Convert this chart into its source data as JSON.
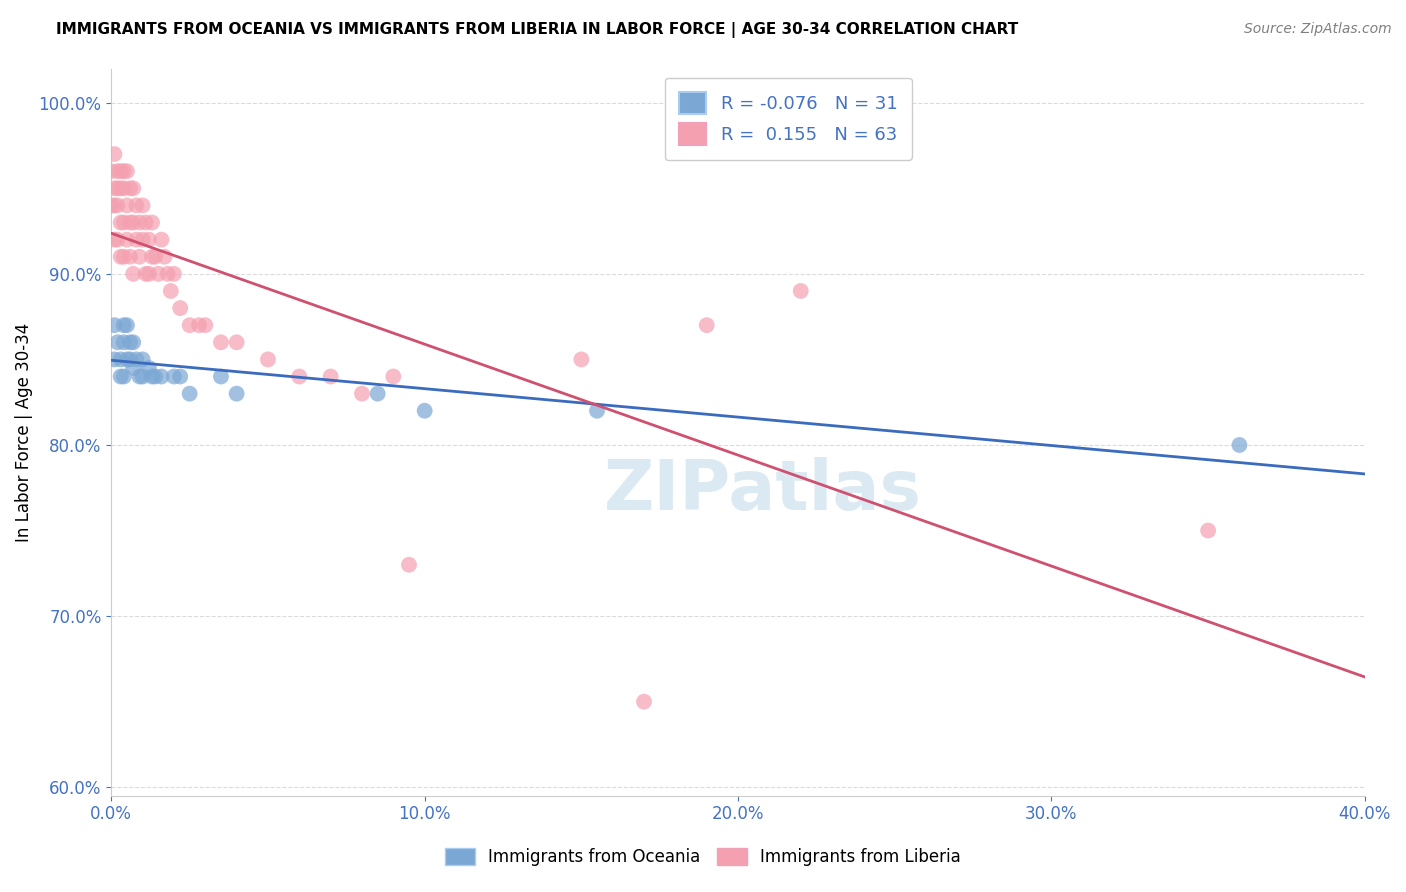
{
  "title": "IMMIGRANTS FROM OCEANIA VS IMMIGRANTS FROM LIBERIA IN LABOR FORCE | AGE 30-34 CORRELATION CHART",
  "source": "Source: ZipAtlas.com",
  "ylabel": "In Labor Force | Age 30-34",
  "xlabel": "",
  "legend1_label": "Immigrants from Oceania",
  "legend2_label": "Immigrants from Liberia",
  "R_oceania": -0.076,
  "N_oceania": 31,
  "R_liberia": 0.155,
  "N_liberia": 63,
  "xlim": [
    0.0,
    0.4
  ],
  "ylim": [
    0.595,
    1.02
  ],
  "yticks": [
    0.6,
    0.7,
    0.8,
    0.9,
    1.0
  ],
  "ytick_labels": [
    "60.0%",
    "70.0%",
    "80.0%",
    "90.0%",
    "100.0%"
  ],
  "xticks": [
    0.0,
    0.1,
    0.2,
    0.3,
    0.4
  ],
  "xtick_labels": [
    "0.0%",
    "10.0%",
    "20.0%",
    "30.0%",
    "40.0%"
  ],
  "oceania_color": "#7ba7d4",
  "liberia_color": "#f4a0b0",
  "line_oceania_color": "#3a6bbf",
  "line_liberia_color": "#d05070",
  "background_color": "#ffffff",
  "watermark": "ZIPatlas",
  "oceania_x": [
    0.001,
    0.001,
    0.002,
    0.003,
    0.003,
    0.004,
    0.004,
    0.004,
    0.005,
    0.005,
    0.006,
    0.006,
    0.007,
    0.007,
    0.008,
    0.009,
    0.01,
    0.01,
    0.012,
    0.013,
    0.014,
    0.016,
    0.02,
    0.022,
    0.025,
    0.035,
    0.04,
    0.085,
    0.1,
    0.155,
    0.36
  ],
  "oceania_y": [
    0.87,
    0.85,
    0.86,
    0.85,
    0.84,
    0.87,
    0.86,
    0.84,
    0.87,
    0.85,
    0.86,
    0.85,
    0.86,
    0.845,
    0.85,
    0.84,
    0.85,
    0.84,
    0.845,
    0.84,
    0.84,
    0.84,
    0.84,
    0.84,
    0.83,
    0.84,
    0.83,
    0.83,
    0.82,
    0.82,
    0.8
  ],
  "liberia_x": [
    0.0,
    0.0,
    0.001,
    0.001,
    0.001,
    0.001,
    0.002,
    0.002,
    0.002,
    0.002,
    0.003,
    0.003,
    0.003,
    0.003,
    0.004,
    0.004,
    0.004,
    0.004,
    0.005,
    0.005,
    0.005,
    0.006,
    0.006,
    0.006,
    0.007,
    0.007,
    0.007,
    0.008,
    0.008,
    0.009,
    0.009,
    0.01,
    0.01,
    0.011,
    0.011,
    0.012,
    0.012,
    0.013,
    0.013,
    0.014,
    0.015,
    0.016,
    0.017,
    0.018,
    0.019,
    0.02,
    0.022,
    0.025,
    0.028,
    0.03,
    0.035,
    0.04,
    0.05,
    0.06,
    0.07,
    0.08,
    0.09,
    0.095,
    0.15,
    0.19,
    0.22,
    0.35,
    0.17
  ],
  "liberia_y": [
    0.96,
    0.94,
    0.97,
    0.95,
    0.94,
    0.92,
    0.96,
    0.95,
    0.94,
    0.92,
    0.96,
    0.95,
    0.93,
    0.91,
    0.96,
    0.95,
    0.93,
    0.91,
    0.96,
    0.94,
    0.92,
    0.95,
    0.93,
    0.91,
    0.95,
    0.93,
    0.9,
    0.94,
    0.92,
    0.93,
    0.91,
    0.94,
    0.92,
    0.93,
    0.9,
    0.92,
    0.9,
    0.93,
    0.91,
    0.91,
    0.9,
    0.92,
    0.91,
    0.9,
    0.89,
    0.9,
    0.88,
    0.87,
    0.87,
    0.87,
    0.86,
    0.86,
    0.85,
    0.84,
    0.84,
    0.83,
    0.84,
    0.73,
    0.85,
    0.87,
    0.89,
    0.75,
    0.65
  ]
}
